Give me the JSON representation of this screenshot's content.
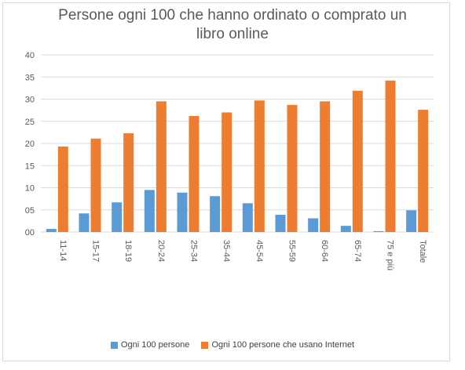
{
  "colors": {
    "series1": "#5b9bd5",
    "series2": "#ed7d31",
    "grid": "#d9d9d9",
    "text": "#595959"
  },
  "chart_data": {
    "type": "bar",
    "title_lines": [
      "Persone ogni 100 che hanno ordinato o comprato un",
      "libro online"
    ],
    "categories": [
      "11-14",
      "15-17",
      "18-19",
      "20-24",
      "25-34",
      "35-44",
      "45-54",
      "55-59",
      "60-64",
      "65-74",
      "75 e più",
      "Totale"
    ],
    "series": [
      {
        "name": "Ogni 100 persone",
        "values": [
          0.7,
          4.2,
          6.7,
          9.5,
          8.9,
          8.1,
          6.5,
          3.9,
          3.1,
          1.4,
          0.2,
          4.9
        ]
      },
      {
        "name": "Ogni 100 persone che usano Internet",
        "values": [
          19.3,
          21.1,
          22.3,
          29.5,
          26.2,
          27.0,
          29.7,
          28.7,
          29.5,
          31.9,
          34.2,
          27.6
        ]
      }
    ],
    "y_ticks": [
      "00",
      "05",
      "10",
      "15",
      "20",
      "25",
      "30",
      "35",
      "40"
    ],
    "ylim": [
      0,
      40
    ],
    "grid": true,
    "legend_position": "bottom"
  }
}
